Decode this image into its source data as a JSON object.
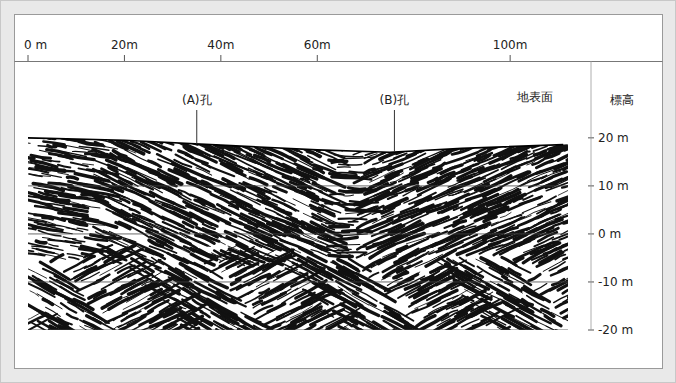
{
  "chart_data": {
    "type": "profile",
    "ylabel": "標高",
    "xlim": [
      0,
      112
    ],
    "xticks": [
      {
        "value": 0,
        "label": "0 m"
      },
      {
        "value": 20,
        "label": "20m"
      },
      {
        "value": 40,
        "label": "40m"
      },
      {
        "value": 60,
        "label": "60m"
      },
      {
        "value": 100,
        "label": "100m"
      }
    ],
    "ylim": [
      -20,
      36
    ],
    "yticks": [
      {
        "value": 20,
        "label": "20 m"
      },
      {
        "value": 10,
        "label": "10 m"
      },
      {
        "value": 0,
        "label": "0 m"
      },
      {
        "value": -10,
        "label": "-10 m"
      },
      {
        "value": -20,
        "label": "-20 m"
      }
    ],
    "grid": true,
    "series": [
      {
        "name": "地表面",
        "color": "#000000",
        "x": [
          0,
          20,
          40,
          60,
          75,
          90,
          111
        ],
        "values": [
          20,
          19.5,
          18.5,
          17.5,
          17,
          17.8,
          18.6
        ]
      }
    ],
    "annotations": [
      {
        "text": "(A)孔",
        "x": 35
      },
      {
        "text": "(B)孔",
        "x": 76
      }
    ]
  }
}
